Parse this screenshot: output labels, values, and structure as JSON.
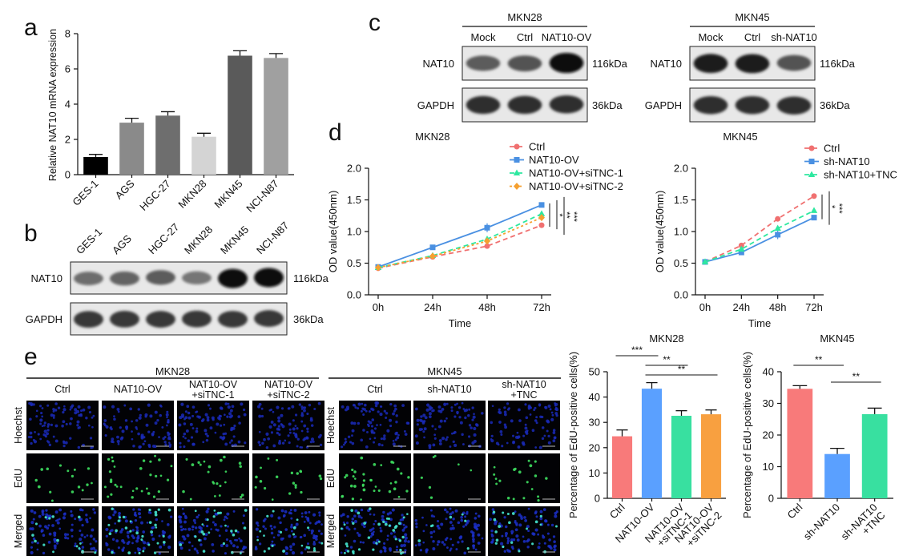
{
  "panel_letters": {
    "a": "a",
    "b": "b",
    "c": "c",
    "d": "d",
    "e": "e"
  },
  "chart_data": [
    {
      "panel": "a",
      "type": "bar",
      "ylabel": "Relative NAT10 mRNA expression",
      "ylim": [
        0,
        8
      ],
      "yticks": [
        0,
        2,
        4,
        6,
        8
      ],
      "categories": [
        "GES-1",
        "AGS",
        "HGC-27",
        "MKN28",
        "MKN45",
        "NCI-N87"
      ],
      "values": [
        1.0,
        2.95,
        3.35,
        2.15,
        6.75,
        6.62
      ],
      "errors": [
        0.15,
        0.25,
        0.22,
        0.2,
        0.28,
        0.25
      ],
      "colors": [
        "#000000",
        "#8a8a8a",
        "#6e6e6e",
        "#d4d4d4",
        "#5a5a5a",
        "#a0a0a0"
      ]
    },
    {
      "panel": "d-MKN28",
      "type": "line",
      "title": "MKN28",
      "xlabel": "Time",
      "ylabel": "OD value(450nm)",
      "x": [
        "0h",
        "24h",
        "48h",
        "72h"
      ],
      "ylim": [
        0.0,
        2.0
      ],
      "yticks": [
        "0.0",
        "0.5",
        "1.0",
        "1.5",
        "2.0"
      ],
      "series": [
        {
          "name": "Ctrl",
          "values": [
            0.42,
            0.6,
            0.77,
            1.1
          ],
          "color": "#f07070",
          "dash": "6,4",
          "marker": "circle"
        },
        {
          "name": "NAT10-OV",
          "values": [
            0.44,
            0.75,
            1.06,
            1.42
          ],
          "color": "#4a90e2",
          "dash": "",
          "marker": "square"
        },
        {
          "name": "NAT10-OV+siTNC-1",
          "values": [
            0.43,
            0.62,
            0.88,
            1.28
          ],
          "color": "#2ee8a0",
          "dash": "6,4",
          "marker": "triangle"
        },
        {
          "name": "NAT10-OV+siTNC-2",
          "values": [
            0.43,
            0.61,
            0.85,
            1.22
          ],
          "color": "#f5a030",
          "dash": "3,3",
          "marker": "diamond"
        }
      ],
      "significance": [
        "*",
        "**",
        "***"
      ]
    },
    {
      "panel": "d-MKN45",
      "type": "line",
      "title": "MKN45",
      "xlabel": "Time",
      "ylabel": "OD value(450nm)",
      "x": [
        "0h",
        "24h",
        "48h",
        "72h"
      ],
      "ylim": [
        0.0,
        2.0
      ],
      "yticks": [
        "0.0",
        "0.5",
        "1.0",
        "1.5",
        "2.0"
      ],
      "series": [
        {
          "name": "Ctrl",
          "values": [
            0.52,
            0.78,
            1.2,
            1.56
          ],
          "color": "#f07070",
          "dash": "6,4",
          "marker": "circle"
        },
        {
          "name": "sh-NAT10",
          "values": [
            0.52,
            0.67,
            0.95,
            1.22
          ],
          "color": "#4a90e2",
          "dash": "",
          "marker": "square"
        },
        {
          "name": "sh-NAT10+TNC",
          "values": [
            0.52,
            0.72,
            1.05,
            1.33
          ],
          "color": "#2ee8a0",
          "dash": "6,4",
          "marker": "triangle"
        }
      ],
      "significance": [
        "*",
        "***"
      ]
    },
    {
      "panel": "e-MKN28",
      "type": "bar",
      "title": "MKN28",
      "ylabel": "Percentage of EdU-positive cells(%)",
      "ylim": [
        0,
        50
      ],
      "yticks": [
        0,
        10,
        20,
        30,
        40,
        50
      ],
      "categories": [
        "Ctrl",
        "NAT10-OV",
        "NAT10-OV +siTNC-1",
        "NAT10-OV +siTNC-2"
      ],
      "values": [
        24.5,
        43.3,
        32.6,
        33.2
      ],
      "errors": [
        2.5,
        2.4,
        2.0,
        1.7
      ],
      "colors": [
        "#f87a7a",
        "#5aa0ff",
        "#38e0a0",
        "#f8a040"
      ],
      "brackets": [
        {
          "from": 0,
          "to": 1,
          "label": "***"
        },
        {
          "from": 1,
          "to": 2,
          "label": "**"
        },
        {
          "from": 1,
          "to": 3,
          "label": "**"
        }
      ]
    },
    {
      "panel": "e-MKN45",
      "type": "bar",
      "title": "MKN45",
      "ylabel": "Percentage of EdU-positive cells(%)",
      "ylim": [
        0,
        40
      ],
      "yticks": [
        0,
        10,
        20,
        30,
        40
      ],
      "categories": [
        "Ctrl",
        "sh-NAT10",
        "sh-NAT10 +TNC"
      ],
      "values": [
        34.6,
        14.0,
        26.6
      ],
      "errors": [
        1.0,
        1.8,
        1.9
      ],
      "colors": [
        "#f87a7a",
        "#5aa0ff",
        "#38e0a0"
      ],
      "brackets": [
        {
          "from": 0,
          "to": 1,
          "label": "**"
        },
        {
          "from": 1,
          "to": 2,
          "label": "**"
        }
      ]
    }
  ],
  "blot_b": {
    "lanes": [
      "GES-1",
      "AGS",
      "HGC-27",
      "MKN28",
      "MKN45",
      "NCI-N87"
    ],
    "rows": [
      {
        "label": "NAT10",
        "size": "116kDa",
        "intensity": [
          0.45,
          0.5,
          0.55,
          0.4,
          1.0,
          1.0
        ]
      },
      {
        "label": "GAPDH",
        "size": "36kDa",
        "intensity": [
          0.75,
          0.75,
          0.75,
          0.75,
          0.75,
          0.75
        ]
      }
    ]
  },
  "blot_c": [
    {
      "cell_line": "MKN28",
      "lanes": [
        "Mock",
        "Ctrl",
        "NAT10-OV"
      ],
      "rows": [
        {
          "label": "NAT10",
          "size": "116kDa",
          "intensity": [
            0.55,
            0.6,
            1.0
          ]
        },
        {
          "label": "GAPDH",
          "size": "36kDa",
          "intensity": [
            0.8,
            0.8,
            0.8
          ]
        }
      ]
    },
    {
      "cell_line": "MKN45",
      "lanes": [
        "Mock",
        "Ctrl",
        "sh-NAT10"
      ],
      "rows": [
        {
          "label": "NAT10",
          "size": "116kDa",
          "intensity": [
            0.9,
            0.9,
            0.6
          ]
        },
        {
          "label": "GAPDH",
          "size": "36kDa",
          "intensity": [
            0.8,
            0.8,
            0.8
          ]
        }
      ]
    }
  ],
  "microscopy_e": [
    {
      "cell_line": "MKN28",
      "columns": [
        "Ctrl",
        "NAT10-OV",
        "NAT10-OV\n+siTNC-1",
        "NAT10-OV\n+siTNC-2"
      ],
      "rows": [
        "Hoechst",
        "EdU",
        "Merged"
      ],
      "edu_density": [
        0.35,
        0.7,
        0.5,
        0.45
      ]
    },
    {
      "cell_line": "MKN45",
      "columns": [
        "Ctrl",
        "sh-NAT10",
        "sh-NAT10\n+TNC"
      ],
      "rows": [
        "Hoechst",
        "EdU",
        "Merged"
      ],
      "edu_density": [
        0.8,
        0.15,
        0.45
      ]
    }
  ]
}
